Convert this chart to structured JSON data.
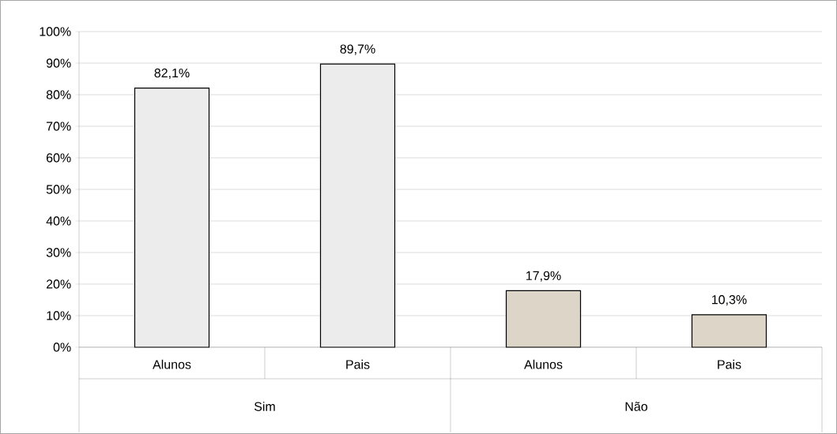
{
  "chart_data": {
    "type": "bar",
    "categories": [
      "Alunos",
      "Pais",
      "Alunos",
      "Pais"
    ],
    "values": [
      82.1,
      89.7,
      17.9,
      10.3
    ],
    "value_labels": [
      "82,1%",
      "89,7%",
      "17,9%",
      "10,3%"
    ],
    "colors": [
      "#ececec",
      "#ececec",
      "#ddd6c8",
      "#ddd6c8"
    ],
    "annotations": [
      "Sim",
      "Não"
    ],
    "ylim": [
      0,
      100
    ],
    "yticks": [
      {
        "value": 0,
        "label": "0%"
      },
      {
        "value": 10,
        "label": "10%"
      },
      {
        "value": 20,
        "label": "20%"
      },
      {
        "value": 30,
        "label": "30%"
      },
      {
        "value": 40,
        "label": "40%"
      },
      {
        "value": 50,
        "label": "50%"
      },
      {
        "value": 60,
        "label": "60%"
      },
      {
        "value": 70,
        "label": "70%"
      },
      {
        "value": 80,
        "label": "80%"
      },
      {
        "value": 90,
        "label": "90%"
      },
      {
        "value": 100,
        "label": "100%"
      }
    ],
    "grid": "y"
  }
}
